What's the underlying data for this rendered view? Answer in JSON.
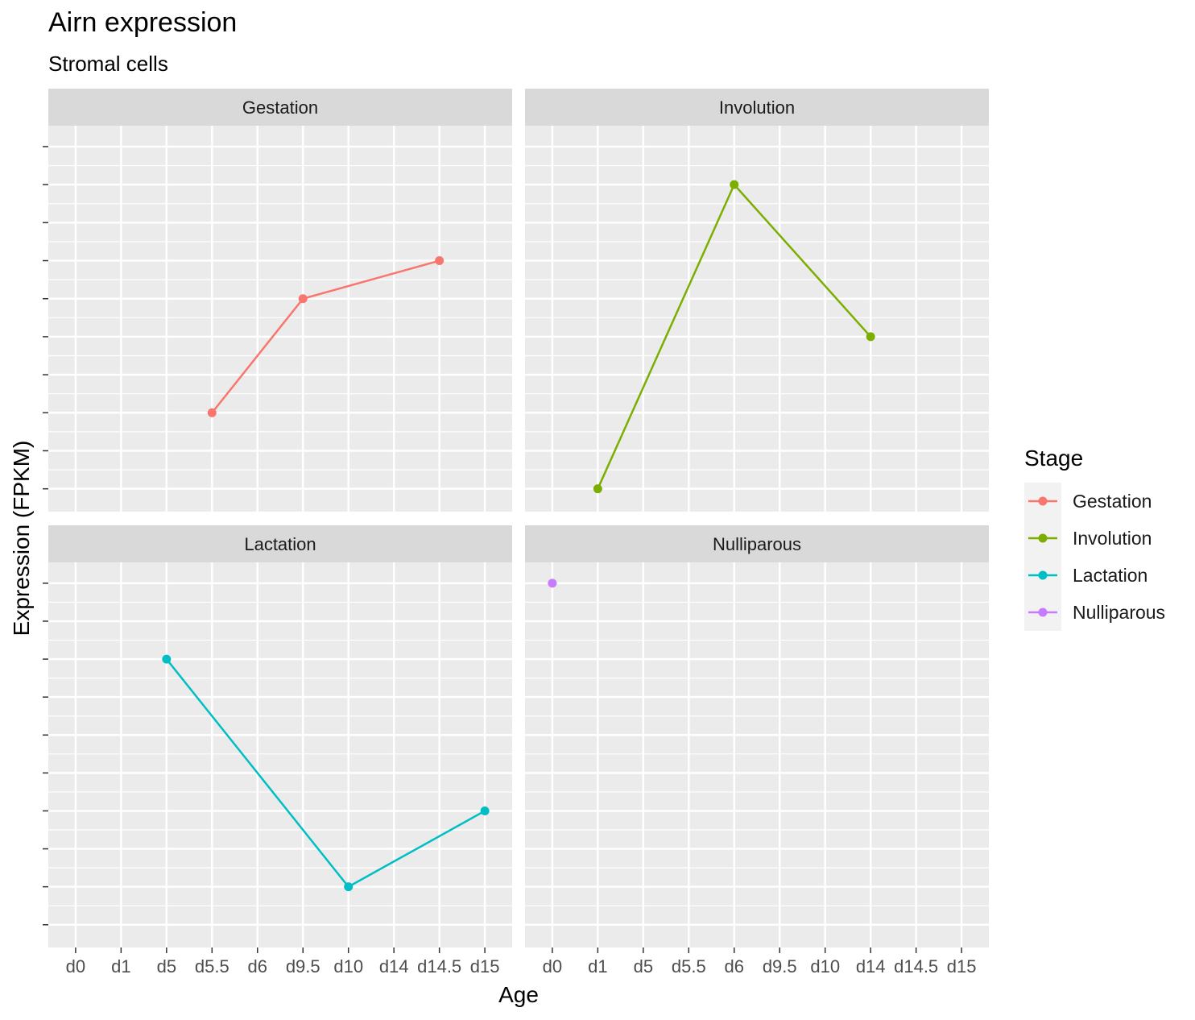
{
  "chart_data": {
    "type": "line",
    "title": "Airn expression",
    "subtitle": "Stromal cells",
    "xlabel": "Age",
    "ylabel": "Expression (FPKM)",
    "categories": [
      "d0",
      "d1",
      "d5",
      "d5.5",
      "d6",
      "d9.5",
      "d10",
      "d14",
      "d14.5",
      "d15"
    ],
    "y_ticks": [
      0,
      1,
      2,
      3,
      4,
      5,
      6,
      7,
      8,
      9
    ],
    "y_tick_labels_shown": false,
    "ylim": [
      -0.6,
      9.55
    ],
    "grid": true,
    "legend_title": "Stage",
    "legend_position": "right",
    "facets": [
      {
        "label": "Gestation",
        "series": "Gestation",
        "points": [
          {
            "x": "d5.5",
            "y": 2
          },
          {
            "x": "d9.5",
            "y": 5
          },
          {
            "x": "d14.5",
            "y": 6
          }
        ]
      },
      {
        "label": "Involution",
        "series": "Involution",
        "points": [
          {
            "x": "d1",
            "y": 0
          },
          {
            "x": "d6",
            "y": 8
          },
          {
            "x": "d14",
            "y": 4
          }
        ]
      },
      {
        "label": "Lactation",
        "series": "Lactation",
        "points": [
          {
            "x": "d5",
            "y": 7
          },
          {
            "x": "d10",
            "y": 1
          },
          {
            "x": "d15",
            "y": 3
          }
        ]
      },
      {
        "label": "Nulliparous",
        "series": "Nulliparous",
        "points": [
          {
            "x": "d0",
            "y": 9
          }
        ]
      }
    ],
    "series": [
      {
        "name": "Gestation",
        "color": "#F8766D"
      },
      {
        "name": "Involution",
        "color": "#7CAE00"
      },
      {
        "name": "Lactation",
        "color": "#00BFC4"
      },
      {
        "name": "Nulliparous",
        "color": "#C77CFF"
      }
    ]
  },
  "colors": {
    "panel_bg": "#EBEBEB",
    "strip_bg": "#D9D9D9",
    "grid": "#FFFFFF",
    "text": "#1A1A1A",
    "axis_text": "#4D4D4D",
    "tick": "#333333",
    "legend_key_bg": "#F2F2F2"
  }
}
